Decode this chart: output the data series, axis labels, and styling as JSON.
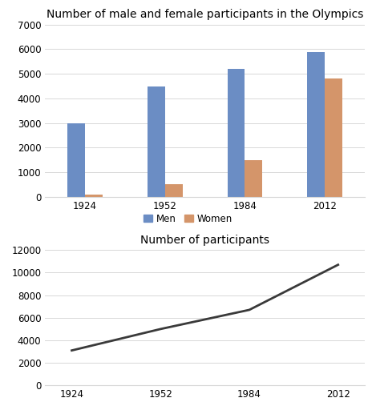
{
  "years": [
    1924,
    1952,
    1984,
    2012
  ],
  "men": [
    3000,
    4500,
    5200,
    5900
  ],
  "women": [
    100,
    500,
    1500,
    4800
  ],
  "total": [
    3100,
    5000,
    6700,
    10700
  ],
  "bar_color_men": "#6B8DC4",
  "bar_color_women": "#D4956A",
  "line_color": "#3A3A3A",
  "title_bar": "Number of male and female participants in the Olympics",
  "title_line": "Number of participants",
  "ylim_bar": [
    0,
    7000
  ],
  "ylim_line": [
    0,
    12000
  ],
  "yticks_bar": [
    0,
    1000,
    2000,
    3000,
    4000,
    5000,
    6000,
    7000
  ],
  "yticks_line": [
    0,
    2000,
    4000,
    6000,
    8000,
    10000,
    12000
  ],
  "legend_labels": [
    "Men",
    "Women"
  ],
  "bar_width": 0.22,
  "background_color": "#FFFFFF",
  "grid_color": "#D8D8D8",
  "title_fontsize": 10,
  "tick_fontsize": 8.5,
  "legend_fontsize": 8.5
}
